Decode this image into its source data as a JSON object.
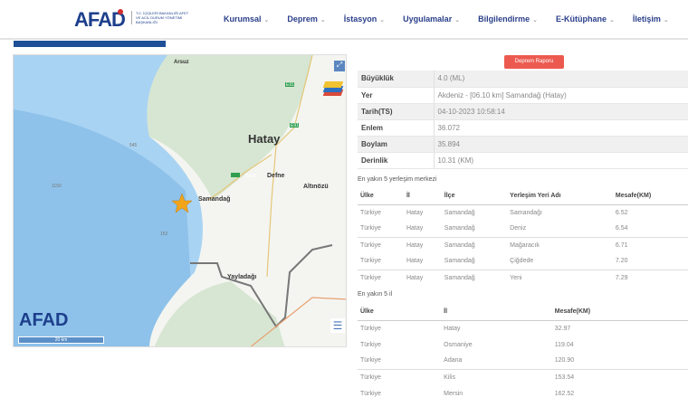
{
  "header": {
    "logo": "AFAD",
    "logo_subtitle": "T.C. İÇİŞLERİ BAKANLIĞI AFET VE ACİL DURUM YÖNETİMİ BAŞKANLIĞI",
    "nav": [
      {
        "label": "Kurumsal"
      },
      {
        "label": "Deprem"
      },
      {
        "label": "İstasyon"
      },
      {
        "label": "Uygulamalar"
      },
      {
        "label": "Bilgilendirme"
      },
      {
        "label": "E-Kütüphane"
      },
      {
        "label": "İletişim"
      }
    ]
  },
  "map": {
    "logo": "AFAD",
    "scale": "20 km",
    "cities": {
      "hatay": "Hatay",
      "samandag": "Samandağ",
      "defne": "Defne",
      "altinozu": "Altınözü",
      "yayladagi": "Yayladağı",
      "arsuz": "Arsuz"
    },
    "roads": {
      "r1": "E91",
      "r2": "E91",
      "r3": "D420"
    },
    "depths": {
      "d1": "545",
      "d2": "1150",
      "d3": "152"
    },
    "event_marker_color": "#f2a51a"
  },
  "report_button": "Deprem Raporu",
  "info": [
    {
      "label": "Büyüklük",
      "value": "4.0 (ML)"
    },
    {
      "label": "Yer",
      "value": "Akdeniz - [06.10 km] Samandağ (Hatay)"
    },
    {
      "label": "Tarih(TS)",
      "value": "04-10-2023 10:58:14"
    },
    {
      "label": "Enlem",
      "value": "36.072"
    },
    {
      "label": "Boylam",
      "value": "35.894"
    },
    {
      "label": "Derinlik",
      "value": "10.31 (KM)"
    }
  ],
  "settlements": {
    "caption": "En yakın 5 yerleşim merkezi",
    "headers": [
      "Ülke",
      "İl",
      "İlçe",
      "Yerleşim Yeri Adı",
      "Mesafe(KM)"
    ],
    "rows": [
      [
        "Türkiye",
        "Hatay",
        "Samandağ",
        "Samandağı",
        "6.52"
      ],
      [
        "Türkiye",
        "Hatay",
        "Samandağ",
        "Deniz",
        "6.54"
      ],
      [
        "Türkiye",
        "Hatay",
        "Samandağ",
        "Mağaracık",
        "6.71"
      ],
      [
        "Türkiye",
        "Hatay",
        "Samandağ",
        "Çiğdede",
        "7.20"
      ],
      [
        "Türkiye",
        "Hatay",
        "Samandağ",
        "Yeni",
        "7.29"
      ]
    ]
  },
  "provinces": {
    "caption": "En yakın 5 il",
    "headers": [
      "Ülke",
      "İl",
      "Mesafe(KM)"
    ],
    "rows": [
      [
        "Türkiye",
        "Hatay",
        "32.97"
      ],
      [
        "Türkiye",
        "Osmaniye",
        "119.04"
      ],
      [
        "Türkiye",
        "Adana",
        "120.90"
      ],
      [
        "Türkiye",
        "Kilis",
        "153.54"
      ],
      [
        "Türkiye",
        "Mersin",
        "162.52"
      ]
    ]
  }
}
